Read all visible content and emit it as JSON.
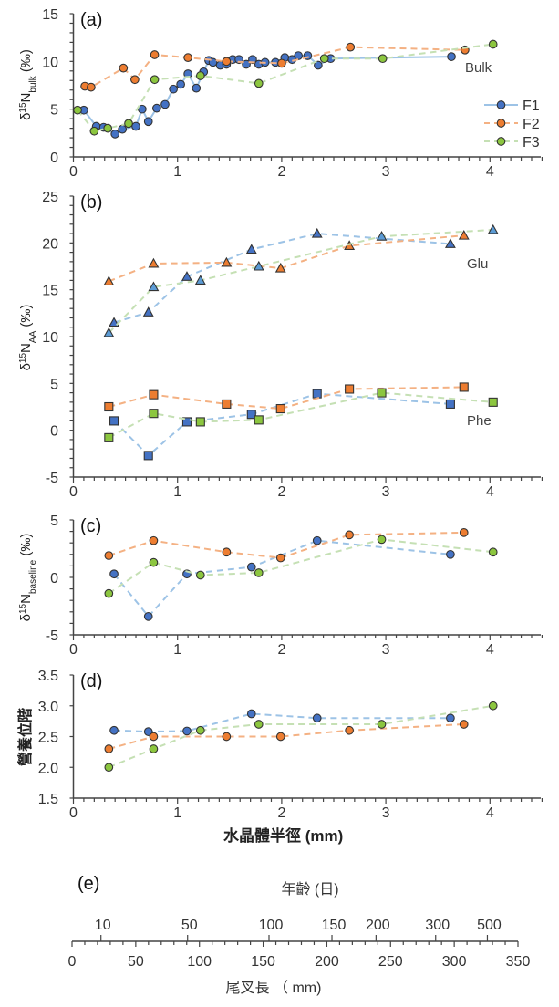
{
  "series_styles": {
    "F1": {
      "marker": "#4472C4",
      "line": "#9DC3E6",
      "dash": "solid-in-bulk"
    },
    "F2": {
      "marker": "#ED7D31",
      "line": "#F4B183",
      "dash": "dashed"
    },
    "F3": {
      "marker": "#8CC63F",
      "line": "#C5E0B4",
      "dash": "dashed"
    },
    "F3_glu_marker": "#5B9BD5"
  },
  "x_axis": {
    "label": "水晶體半徑 (mm)",
    "ticks": [
      "0",
      "1",
      "2",
      "3",
      "4"
    ],
    "xlim": [
      0,
      4.5
    ]
  },
  "chart_data": [
    {
      "panel": "(a)",
      "type": "line",
      "ylabel_main": "δ",
      "ylabel_sup": "15",
      "ylabel_n": "N",
      "ylabel_sub": "bulk",
      "ylabel_unit": " (‰)",
      "ylim": [
        0,
        15
      ],
      "yticks": [
        0,
        5,
        10,
        15
      ],
      "annotation": "Bulk",
      "legend": {
        "placement": "right",
        "entries": [
          "F1",
          "F2",
          "F3"
        ]
      },
      "series": [
        {
          "name": "F1",
          "marker": "circle",
          "x": [
            0.1,
            0.22,
            0.29,
            0.4,
            0.47,
            0.6,
            0.66,
            0.72,
            0.8,
            0.88,
            0.96,
            1.03,
            1.1,
            1.18,
            1.25,
            1.3,
            1.34,
            1.41,
            1.47,
            1.53,
            1.59,
            1.66,
            1.72,
            1.78,
            1.84,
            1.94,
            2.03,
            2.1,
            2.16,
            2.25,
            2.35,
            2.47,
            3.63
          ],
          "y": [
            4.9,
            3.2,
            3.1,
            2.4,
            2.9,
            3.2,
            5.0,
            3.7,
            5.1,
            5.5,
            7.1,
            7.6,
            8.7,
            7.2,
            8.9,
            10.1,
            9.9,
            9.6,
            9.7,
            10.2,
            10.2,
            9.7,
            10.2,
            9.7,
            9.9,
            9.9,
            10.4,
            10.2,
            10.6,
            10.6,
            9.6,
            10.3,
            10.5
          ]
        },
        {
          "name": "F2",
          "marker": "circle",
          "x": [
            0.11,
            0.17,
            0.48,
            0.59,
            0.78,
            1.1,
            1.47,
            2.0,
            2.66,
            3.76
          ],
          "y": [
            7.4,
            7.3,
            9.3,
            8.1,
            10.7,
            10.4,
            10.0,
            9.8,
            11.5,
            11.2
          ]
        },
        {
          "name": "F3",
          "marker": "circle",
          "x": [
            0.04,
            0.2,
            0.33,
            0.53,
            0.78,
            1.22,
            1.78,
            2.41,
            2.97,
            4.03
          ],
          "y": [
            4.9,
            2.7,
            3.0,
            3.5,
            8.1,
            8.5,
            7.7,
            10.3,
            10.3,
            11.8
          ]
        }
      ]
    },
    {
      "panel": "(b)",
      "type": "line",
      "ylabel_main": "δ",
      "ylabel_sup": "15",
      "ylabel_n": "N",
      "ylabel_sub": "AA",
      "ylabel_unit": " (‰)",
      "ylim": [
        -5,
        25
      ],
      "yticks": [
        -5,
        0,
        5,
        10,
        15,
        20,
        25
      ],
      "annotations": [
        "Glu",
        "Phe"
      ],
      "series": [
        {
          "name": "F1",
          "group": "Glu",
          "marker": "triangle",
          "x": [
            0.39,
            0.72,
            1.09,
            1.71,
            2.34,
            3.62
          ],
          "y": [
            11.5,
            12.6,
            16.4,
            19.3,
            21.0,
            19.9
          ]
        },
        {
          "name": "F2",
          "group": "Glu",
          "marker": "triangle",
          "x": [
            0.34,
            0.77,
            1.47,
            1.99,
            2.65,
            3.75
          ],
          "y": [
            15.9,
            17.8,
            17.9,
            17.3,
            19.7,
            20.8
          ]
        },
        {
          "name": "F3",
          "group": "Glu",
          "marker": "triangle",
          "x": [
            0.34,
            0.77,
            1.22,
            1.78,
            2.96,
            4.03
          ],
          "y": [
            10.4,
            15.3,
            16.0,
            17.5,
            20.7,
            21.4
          ]
        },
        {
          "name": "F1",
          "group": "Phe",
          "marker": "square",
          "x": [
            0.39,
            0.72,
            1.09,
            1.71,
            2.34,
            3.62
          ],
          "y": [
            1.0,
            -2.7,
            0.9,
            1.7,
            3.9,
            2.8
          ]
        },
        {
          "name": "F2",
          "group": "Phe",
          "marker": "square",
          "x": [
            0.34,
            0.77,
            1.47,
            1.99,
            2.65,
            3.75
          ],
          "y": [
            2.5,
            3.8,
            2.8,
            2.3,
            4.4,
            4.6
          ]
        },
        {
          "name": "F3",
          "group": "Phe",
          "marker": "square",
          "x": [
            0.34,
            0.77,
            1.22,
            1.78,
            2.96,
            4.03
          ],
          "y": [
            -0.8,
            1.8,
            0.9,
            1.1,
            4.0,
            3.0
          ]
        }
      ]
    },
    {
      "panel": "(c)",
      "type": "line",
      "ylabel_main": "δ",
      "ylabel_sup": "15",
      "ylabel_n": "N",
      "ylabel_sub": "baseline",
      "ylabel_unit": " (‰)",
      "ylim": [
        -5,
        5
      ],
      "yticks": [
        -5,
        0,
        5
      ],
      "series": [
        {
          "name": "F1",
          "marker": "circle",
          "x": [
            0.39,
            0.72,
            1.09,
            1.71,
            2.34,
            3.62
          ],
          "y": [
            0.3,
            -3.4,
            0.3,
            0.9,
            3.2,
            2.0
          ]
        },
        {
          "name": "F2",
          "marker": "circle",
          "x": [
            0.34,
            0.77,
            1.47,
            1.99,
            2.65,
            3.75
          ],
          "y": [
            1.9,
            3.2,
            2.2,
            1.7,
            3.7,
            3.9
          ]
        },
        {
          "name": "F3",
          "marker": "circle",
          "x": [
            0.34,
            0.77,
            1.22,
            1.78,
            2.96,
            4.03
          ],
          "y": [
            -1.4,
            1.3,
            0.2,
            0.4,
            3.3,
            2.2
          ]
        }
      ]
    },
    {
      "panel": "(d)",
      "type": "line",
      "ylabel_main": "營養位階",
      "ylim": [
        1.5,
        3.5
      ],
      "yticks": [
        "1.5",
        "2.0",
        "2.5",
        "3.0",
        "3.5"
      ],
      "series": [
        {
          "name": "F1",
          "marker": "circle",
          "x": [
            0.39,
            0.72,
            1.09,
            1.71,
            2.34,
            3.62
          ],
          "y": [
            2.6,
            2.58,
            2.59,
            2.87,
            2.8,
            2.8
          ]
        },
        {
          "name": "F2",
          "marker": "circle",
          "x": [
            0.34,
            0.77,
            1.47,
            1.99,
            2.65,
            3.75
          ],
          "y": [
            2.3,
            2.5,
            2.5,
            2.5,
            2.6,
            2.7
          ]
        },
        {
          "name": "F3",
          "marker": "circle",
          "x": [
            0.34,
            0.77,
            1.22,
            1.78,
            2.96,
            4.03
          ],
          "y": [
            2.0,
            2.3,
            2.6,
            2.7,
            2.7,
            3.0
          ]
        }
      ]
    },
    {
      "panel": "(e)",
      "type": "axis-scale",
      "top_label": "年齡 (日)",
      "bottom_label": "尾叉長 （ mm)",
      "xlim": [
        0,
        350
      ],
      "bottom_ticks": [
        "0",
        "50",
        "100",
        "150",
        "200",
        "250",
        "300",
        "350"
      ],
      "top_ticks": [
        {
          "label": "10",
          "at_fork_length": 22.7
        },
        {
          "label": "50",
          "at_fork_length": 90.7
        },
        {
          "label": "100",
          "at_fork_length": 154.6
        },
        {
          "label": "150",
          "at_fork_length": 204
        },
        {
          "label": "200",
          "at_fork_length": 238.6
        },
        {
          "label": "300",
          "at_fork_length": 285.4
        },
        {
          "label": "500",
          "at_fork_length": 326
        }
      ]
    }
  ]
}
